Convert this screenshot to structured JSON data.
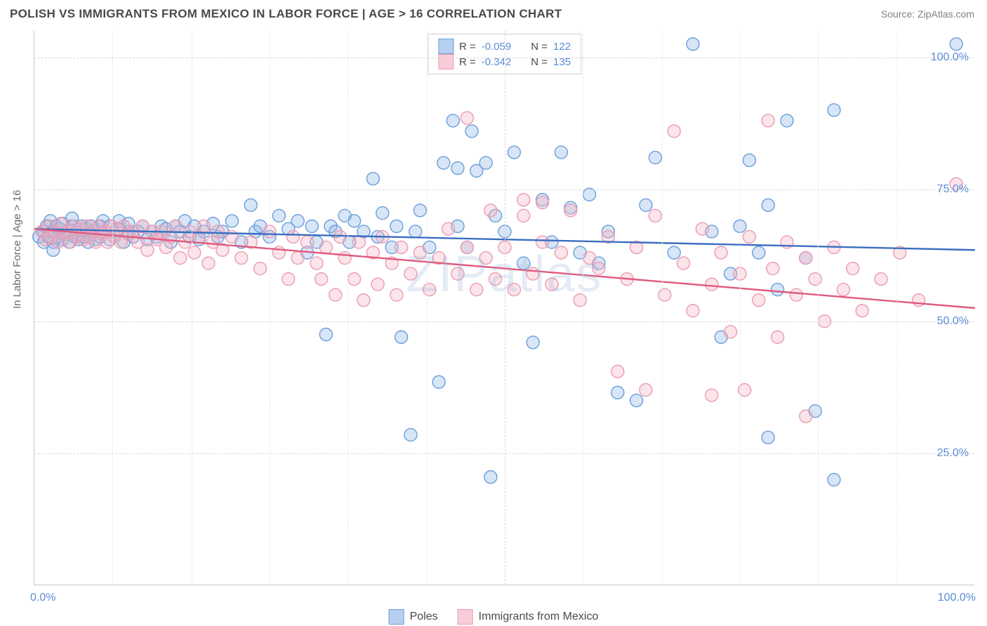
{
  "title": "POLISH VS IMMIGRANTS FROM MEXICO IN LABOR FORCE | AGE > 16 CORRELATION CHART",
  "source": "Source: ZipAtlas.com",
  "watermark": "ZIPatlas",
  "chart": {
    "type": "scatter",
    "y_axis_title": "In Labor Force | Age > 16",
    "xlim": [
      0,
      100
    ],
    "ylim": [
      0,
      105
    ],
    "x_ticks": [
      0,
      50,
      100
    ],
    "x_tick_labels": [
      "0.0%",
      "",
      "100.0%"
    ],
    "y_ticks": [
      25,
      50,
      75,
      100
    ],
    "y_tick_labels": [
      "25.0%",
      "50.0%",
      "75.0%",
      "100.0%"
    ],
    "x_minor_ticks": [
      8.3,
      16.7,
      25,
      33.3,
      41.7,
      58.3,
      66.7,
      75,
      83.3,
      91.7
    ],
    "background_color": "#ffffff",
    "grid_color": "#d8d8d8",
    "axis_label_color": "#5b8dd6",
    "title_color": "#4a4a4a",
    "title_fontsize": 17,
    "tick_fontsize": 16,
    "series": [
      {
        "name": "Poles",
        "color": "#8bb4e6",
        "stroke": "#6a9edb",
        "fill_opacity": 0.35,
        "marker_radius": 9,
        "R": -0.059,
        "N": 122,
        "trend": {
          "x1": 0,
          "y1": 67.5,
          "x2": 100,
          "y2": 63.5,
          "color": "#3a6ec0"
        },
        "points": [
          [
            0.5,
            66
          ],
          [
            1,
            67
          ],
          [
            1,
            65
          ],
          [
            1.3,
            68
          ],
          [
            1.5,
            66
          ],
          [
            1.7,
            69
          ],
          [
            2,
            67
          ],
          [
            2,
            65
          ],
          [
            2,
            63.5
          ],
          [
            2.3,
            68
          ],
          [
            2.5,
            66
          ],
          [
            2.7,
            67.5
          ],
          [
            3,
            65.5
          ],
          [
            3,
            68.5
          ],
          [
            3.3,
            66.5
          ],
          [
            3.5,
            67
          ],
          [
            3.7,
            65
          ],
          [
            4,
            68
          ],
          [
            4,
            69.5
          ],
          [
            4.3,
            66
          ],
          [
            4.5,
            67
          ],
          [
            4.7,
            65.5
          ],
          [
            5,
            68
          ],
          [
            5.2,
            66
          ],
          [
            5.5,
            67.5
          ],
          [
            5.7,
            65
          ],
          [
            6,
            66.5
          ],
          [
            6,
            68
          ],
          [
            6.3,
            67
          ],
          [
            6.5,
            65.5
          ],
          [
            7,
            68
          ],
          [
            7,
            66
          ],
          [
            7.3,
            69
          ],
          [
            7.5,
            67
          ],
          [
            8,
            65.5
          ],
          [
            8,
            68
          ],
          [
            8.5,
            66
          ],
          [
            9,
            67.5
          ],
          [
            9,
            69
          ],
          [
            9.5,
            65
          ],
          [
            10,
            67
          ],
          [
            10,
            68.5
          ],
          [
            10.5,
            66
          ],
          [
            11,
            67
          ],
          [
            11.5,
            68
          ],
          [
            12,
            65.5
          ],
          [
            12.5,
            67
          ],
          [
            13,
            66
          ],
          [
            13.5,
            68
          ],
          [
            14,
            67.5
          ],
          [
            14.5,
            65
          ],
          [
            15,
            68
          ],
          [
            15.5,
            67
          ],
          [
            16,
            69
          ],
          [
            16.5,
            66
          ],
          [
            17,
            68
          ],
          [
            17.5,
            65.5
          ],
          [
            18,
            67
          ],
          [
            19,
            68.5
          ],
          [
            19.5,
            66
          ],
          [
            20,
            67
          ],
          [
            21,
            69
          ],
          [
            22,
            65
          ],
          [
            23,
            72
          ],
          [
            23.5,
            67
          ],
          [
            24,
            68
          ],
          [
            25,
            66
          ],
          [
            26,
            70
          ],
          [
            27,
            67.5
          ],
          [
            28,
            69
          ],
          [
            29,
            63
          ],
          [
            29.5,
            68
          ],
          [
            30,
            65
          ],
          [
            31,
            47.5
          ],
          [
            31.5,
            68
          ],
          [
            32,
            67
          ],
          [
            33,
            70
          ],
          [
            33.5,
            65
          ],
          [
            34,
            69
          ],
          [
            35,
            67
          ],
          [
            36,
            77
          ],
          [
            36.5,
            66
          ],
          [
            37,
            70.5
          ],
          [
            38,
            64
          ],
          [
            38.5,
            68
          ],
          [
            39,
            47
          ],
          [
            40,
            28.5
          ],
          [
            40.5,
            67
          ],
          [
            41,
            71
          ],
          [
            42,
            64
          ],
          [
            43,
            38.5
          ],
          [
            43.5,
            80
          ],
          [
            44.5,
            88
          ],
          [
            45,
            68
          ],
          [
            45,
            79
          ],
          [
            46,
            64
          ],
          [
            46.5,
            86
          ],
          [
            47,
            78.5
          ],
          [
            48,
            80
          ],
          [
            48.5,
            20.5
          ],
          [
            49,
            70
          ],
          [
            50,
            67
          ],
          [
            51,
            82
          ],
          [
            52,
            61
          ],
          [
            53,
            46
          ],
          [
            54,
            73
          ],
          [
            55,
            65
          ],
          [
            56,
            82
          ],
          [
            57,
            71.5
          ],
          [
            58,
            63
          ],
          [
            59,
            74
          ],
          [
            60,
            61
          ],
          [
            61,
            67
          ],
          [
            62,
            36.5
          ],
          [
            64,
            35
          ],
          [
            65,
            72
          ],
          [
            66,
            81
          ],
          [
            68,
            63
          ],
          [
            70,
            102.5
          ],
          [
            72,
            67
          ],
          [
            73,
            47
          ],
          [
            74,
            59
          ],
          [
            75,
            68
          ],
          [
            76,
            80.5
          ],
          [
            77,
            63
          ],
          [
            78,
            72
          ],
          [
            78,
            28
          ],
          [
            79,
            56
          ],
          [
            80,
            88
          ],
          [
            82,
            62
          ],
          [
            83,
            33
          ],
          [
            85,
            20
          ],
          [
            85,
            90
          ],
          [
            98,
            102.5
          ]
        ]
      },
      {
        "name": "Immigrants from Mexico",
        "color": "#f4b3c2",
        "stroke": "#ea9cb0",
        "fill_opacity": 0.35,
        "marker_radius": 9,
        "R": -0.342,
        "N": 135,
        "trend": {
          "x1": 0,
          "y1": 67.5,
          "x2": 100,
          "y2": 52.5,
          "color": "#e05a7d"
        },
        "points": [
          [
            0.8,
            67
          ],
          [
            1.2,
            65.5
          ],
          [
            1.5,
            68
          ],
          [
            1.8,
            66
          ],
          [
            2.2,
            67
          ],
          [
            2.5,
            65
          ],
          [
            2.8,
            68.5
          ],
          [
            3.2,
            66.5
          ],
          [
            3.5,
            67
          ],
          [
            3.8,
            65
          ],
          [
            4.2,
            68
          ],
          [
            4.5,
            66
          ],
          [
            4.8,
            67.5
          ],
          [
            5.2,
            65.5
          ],
          [
            5.5,
            68
          ],
          [
            5.8,
            66
          ],
          [
            6.2,
            67
          ],
          [
            6.5,
            65
          ],
          [
            6.8,
            68
          ],
          [
            7.2,
            66.5
          ],
          [
            7.5,
            67
          ],
          [
            7.8,
            65
          ],
          [
            8.2,
            68
          ],
          [
            8.5,
            66
          ],
          [
            8.8,
            67.5
          ],
          [
            9.2,
            65
          ],
          [
            9.5,
            68
          ],
          [
            10,
            66.5
          ],
          [
            10.5,
            67
          ],
          [
            11,
            65
          ],
          [
            11.5,
            68
          ],
          [
            12,
            63.5
          ],
          [
            12.5,
            67
          ],
          [
            13,
            65.5
          ],
          [
            13.5,
            67
          ],
          [
            14,
            64
          ],
          [
            14.5,
            66
          ],
          [
            15,
            68
          ],
          [
            15.5,
            62
          ],
          [
            16,
            65
          ],
          [
            16.5,
            67
          ],
          [
            17,
            63
          ],
          [
            17.5,
            66
          ],
          [
            18,
            68
          ],
          [
            18.5,
            61
          ],
          [
            19,
            65
          ],
          [
            19.5,
            67
          ],
          [
            20,
            63.5
          ],
          [
            21,
            66
          ],
          [
            22,
            62
          ],
          [
            23,
            65
          ],
          [
            24,
            60
          ],
          [
            25,
            67
          ],
          [
            26,
            63
          ],
          [
            27,
            58
          ],
          [
            27.5,
            66
          ],
          [
            28,
            62
          ],
          [
            29,
            65
          ],
          [
            30,
            61
          ],
          [
            30.5,
            58
          ],
          [
            31,
            64
          ],
          [
            32,
            55
          ],
          [
            32.5,
            66
          ],
          [
            33,
            62
          ],
          [
            34,
            58
          ],
          [
            34.5,
            65
          ],
          [
            35,
            54
          ],
          [
            36,
            63
          ],
          [
            36.5,
            57
          ],
          [
            37,
            66
          ],
          [
            38,
            61
          ],
          [
            38.5,
            55
          ],
          [
            39,
            64
          ],
          [
            40,
            59
          ],
          [
            41,
            63
          ],
          [
            42,
            56
          ],
          [
            43,
            62
          ],
          [
            44,
            67.5
          ],
          [
            45,
            59
          ],
          [
            46,
            64
          ],
          [
            46,
            88.5
          ],
          [
            47,
            56
          ],
          [
            48,
            62
          ],
          [
            48.5,
            71
          ],
          [
            49,
            58
          ],
          [
            50,
            64
          ],
          [
            51,
            56
          ],
          [
            52,
            70
          ],
          [
            52,
            73
          ],
          [
            53,
            59
          ],
          [
            54,
            65
          ],
          [
            54,
            72.5
          ],
          [
            55,
            57
          ],
          [
            56,
            63
          ],
          [
            57,
            71
          ],
          [
            58,
            54
          ],
          [
            59,
            62
          ],
          [
            60,
            60
          ],
          [
            61,
            66
          ],
          [
            62,
            40.5
          ],
          [
            63,
            58
          ],
          [
            64,
            64
          ],
          [
            65,
            37
          ],
          [
            66,
            70
          ],
          [
            67,
            55
          ],
          [
            68,
            86
          ],
          [
            69,
            61
          ],
          [
            70,
            52
          ],
          [
            71,
            67.5
          ],
          [
            72,
            57
          ],
          [
            72,
            36
          ],
          [
            73,
            63
          ],
          [
            74,
            48
          ],
          [
            75,
            59
          ],
          [
            75.5,
            37
          ],
          [
            76,
            66
          ],
          [
            77,
            54
          ],
          [
            78,
            88
          ],
          [
            78.5,
            60
          ],
          [
            79,
            47
          ],
          [
            80,
            65
          ],
          [
            81,
            55
          ],
          [
            82,
            62
          ],
          [
            82,
            32
          ],
          [
            83,
            58
          ],
          [
            84,
            50
          ],
          [
            85,
            64
          ],
          [
            86,
            56
          ],
          [
            87,
            60
          ],
          [
            88,
            52
          ],
          [
            90,
            58
          ],
          [
            92,
            63
          ],
          [
            94,
            54
          ],
          [
            98,
            76
          ]
        ]
      }
    ],
    "legend_top": {
      "rows": [
        {
          "swatch_fill": "#b8d0ef",
          "swatch_stroke": "#6a9edb",
          "R": "-0.059",
          "N": "122"
        },
        {
          "swatch_fill": "#f7cdd7",
          "swatch_stroke": "#ea9cb0",
          "R": "-0.342",
          "N": "135"
        }
      ],
      "labels": {
        "R": "R =",
        "N": "N ="
      }
    },
    "legend_bottom": [
      {
        "swatch_fill": "#b8d0ef",
        "swatch_stroke": "#6a9edb",
        "label": "Poles"
      },
      {
        "swatch_fill": "#f7cdd7",
        "swatch_stroke": "#ea9cb0",
        "label": "Immigrants from Mexico"
      }
    ]
  }
}
